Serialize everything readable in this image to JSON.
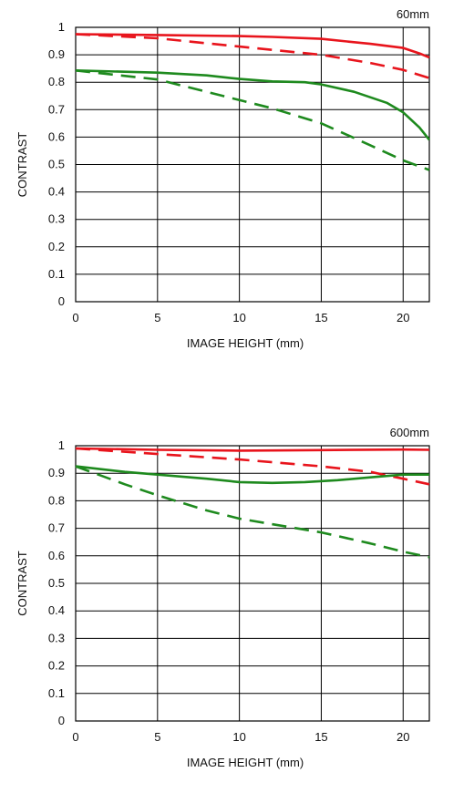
{
  "chart_data": [
    {
      "type": "line",
      "title": "60mm",
      "xlabel": "IMAGE HEIGHT (mm)",
      "ylabel": "CONTRAST",
      "xlim": [
        0,
        21.6
      ],
      "ylim": [
        0,
        1
      ],
      "xticks": [
        "0",
        "5",
        "10",
        "15",
        "20"
      ],
      "xtick_values": [
        0,
        5,
        10,
        15,
        20
      ],
      "yticks": [
        "0",
        "0.1",
        "0.2",
        "0.3",
        "0.4",
        "0.5",
        "0.6",
        "0.7",
        "0.8",
        "0.9",
        "1"
      ],
      "ytick_values": [
        0,
        0.1,
        0.2,
        0.3,
        0.4,
        0.5,
        0.6,
        0.7,
        0.8,
        0.9,
        1.0
      ],
      "grid": true,
      "series": [
        {
          "color": "#e8141c",
          "dash": "solid",
          "x": [
            0,
            5,
            10,
            12,
            15,
            18,
            20,
            21,
            21.6
          ],
          "y": [
            0.975,
            0.972,
            0.968,
            0.965,
            0.958,
            0.94,
            0.925,
            0.905,
            0.89
          ]
        },
        {
          "color": "#e8141c",
          "dash": "dashed",
          "x": [
            0,
            5,
            10,
            15,
            18,
            20,
            21.6
          ],
          "y": [
            0.975,
            0.96,
            0.93,
            0.9,
            0.87,
            0.845,
            0.815
          ]
        },
        {
          "color": "#1e8a1e",
          "dash": "solid",
          "x": [
            0,
            5,
            8,
            10,
            12,
            14,
            15,
            17,
            19,
            20,
            21,
            21.6
          ],
          "y": [
            0.843,
            0.835,
            0.825,
            0.812,
            0.803,
            0.8,
            0.792,
            0.765,
            0.725,
            0.69,
            0.635,
            0.59
          ]
        },
        {
          "color": "#1e8a1e",
          "dash": "dashed",
          "x": [
            0,
            5,
            8,
            10,
            12,
            15,
            18,
            20,
            21.6
          ],
          "y": [
            0.843,
            0.81,
            0.765,
            0.735,
            0.705,
            0.65,
            0.57,
            0.515,
            0.48
          ]
        }
      ]
    },
    {
      "type": "line",
      "title": "600mm",
      "xlabel": "IMAGE HEIGHT (mm)",
      "ylabel": "CONTRAST",
      "xlim": [
        0,
        21.6
      ],
      "ylim": [
        0,
        1
      ],
      "xticks": [
        "0",
        "5",
        "10",
        "15",
        "20"
      ],
      "xtick_values": [
        0,
        5,
        10,
        15,
        20
      ],
      "yticks": [
        "0",
        "0.1",
        "0.2",
        "0.3",
        "0.4",
        "0.5",
        "0.6",
        "0.7",
        "0.8",
        "0.9",
        "1"
      ],
      "ytick_values": [
        0,
        0.1,
        0.2,
        0.3,
        0.4,
        0.5,
        0.6,
        0.7,
        0.8,
        0.9,
        1.0
      ],
      "grid": true,
      "series": [
        {
          "color": "#e8141c",
          "dash": "solid",
          "x": [
            0,
            5,
            10,
            15,
            20,
            21.6
          ],
          "y": [
            0.99,
            0.985,
            0.982,
            0.984,
            0.986,
            0.985
          ]
        },
        {
          "color": "#e8141c",
          "dash": "dashed",
          "x": [
            0,
            5,
            10,
            15,
            18,
            20,
            21.6
          ],
          "y": [
            0.99,
            0.97,
            0.95,
            0.925,
            0.905,
            0.88,
            0.86
          ]
        },
        {
          "color": "#1e8a1e",
          "dash": "solid",
          "x": [
            0,
            3,
            5,
            8,
            10,
            12,
            14,
            16,
            18,
            20,
            21.6
          ],
          "y": [
            0.925,
            0.905,
            0.895,
            0.88,
            0.868,
            0.865,
            0.868,
            0.875,
            0.885,
            0.895,
            0.895
          ]
        },
        {
          "color": "#1e8a1e",
          "dash": "dashed",
          "x": [
            0,
            3,
            5,
            8,
            10,
            13,
            15,
            18,
            20,
            21.6
          ],
          "y": [
            0.925,
            0.86,
            0.82,
            0.765,
            0.735,
            0.705,
            0.685,
            0.645,
            0.615,
            0.595
          ]
        }
      ]
    }
  ]
}
